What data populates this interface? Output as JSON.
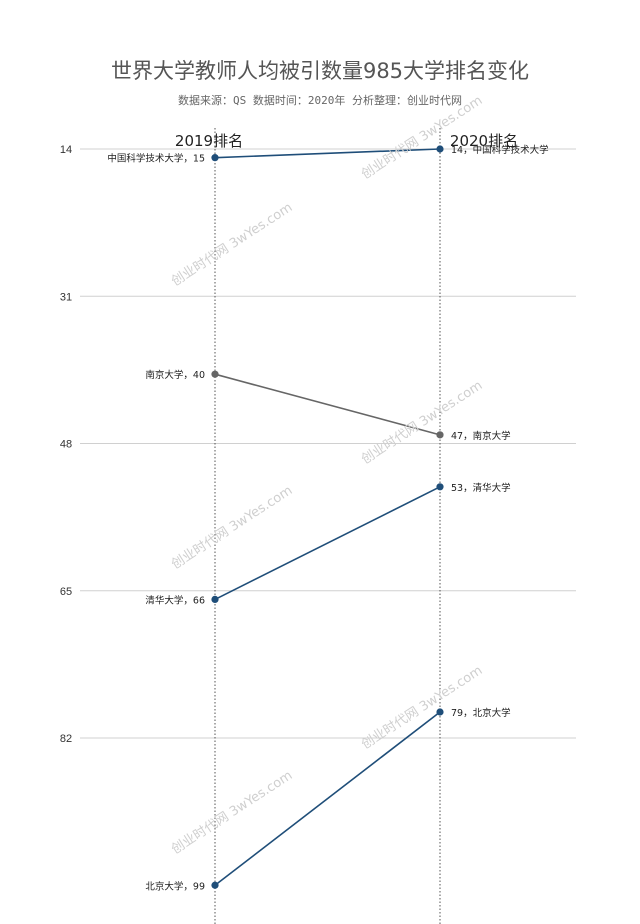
{
  "title": "世界大学教师人均被引数量985大学排名变化",
  "subtitle": "数据来源：QS 数据时间：2020年 分析整理：创业时代网",
  "watermark": "创业时代网 3wYes.com",
  "colors": {
    "blue": "#1f4e79",
    "gray": "#666666",
    "grid": "#d0d0d0",
    "axis": "#555555"
  },
  "chart_data": {
    "type": "slope",
    "x": [
      "2019排名",
      "2020排名"
    ],
    "yticks": [
      14,
      31,
      48,
      65,
      82
    ],
    "yreversed": true,
    "series": [
      {
        "name": "中国科学技术大学",
        "values": [
          15,
          14
        ],
        "color": "#1f4e79"
      },
      {
        "name": "南京大学",
        "values": [
          40,
          47
        ],
        "color": "#666666"
      },
      {
        "name": "清华大学",
        "values": [
          66,
          53
        ],
        "color": "#1f4e79"
      },
      {
        "name": "北京大学",
        "values": [
          99,
          79
        ],
        "color": "#1f4e79"
      }
    ]
  }
}
